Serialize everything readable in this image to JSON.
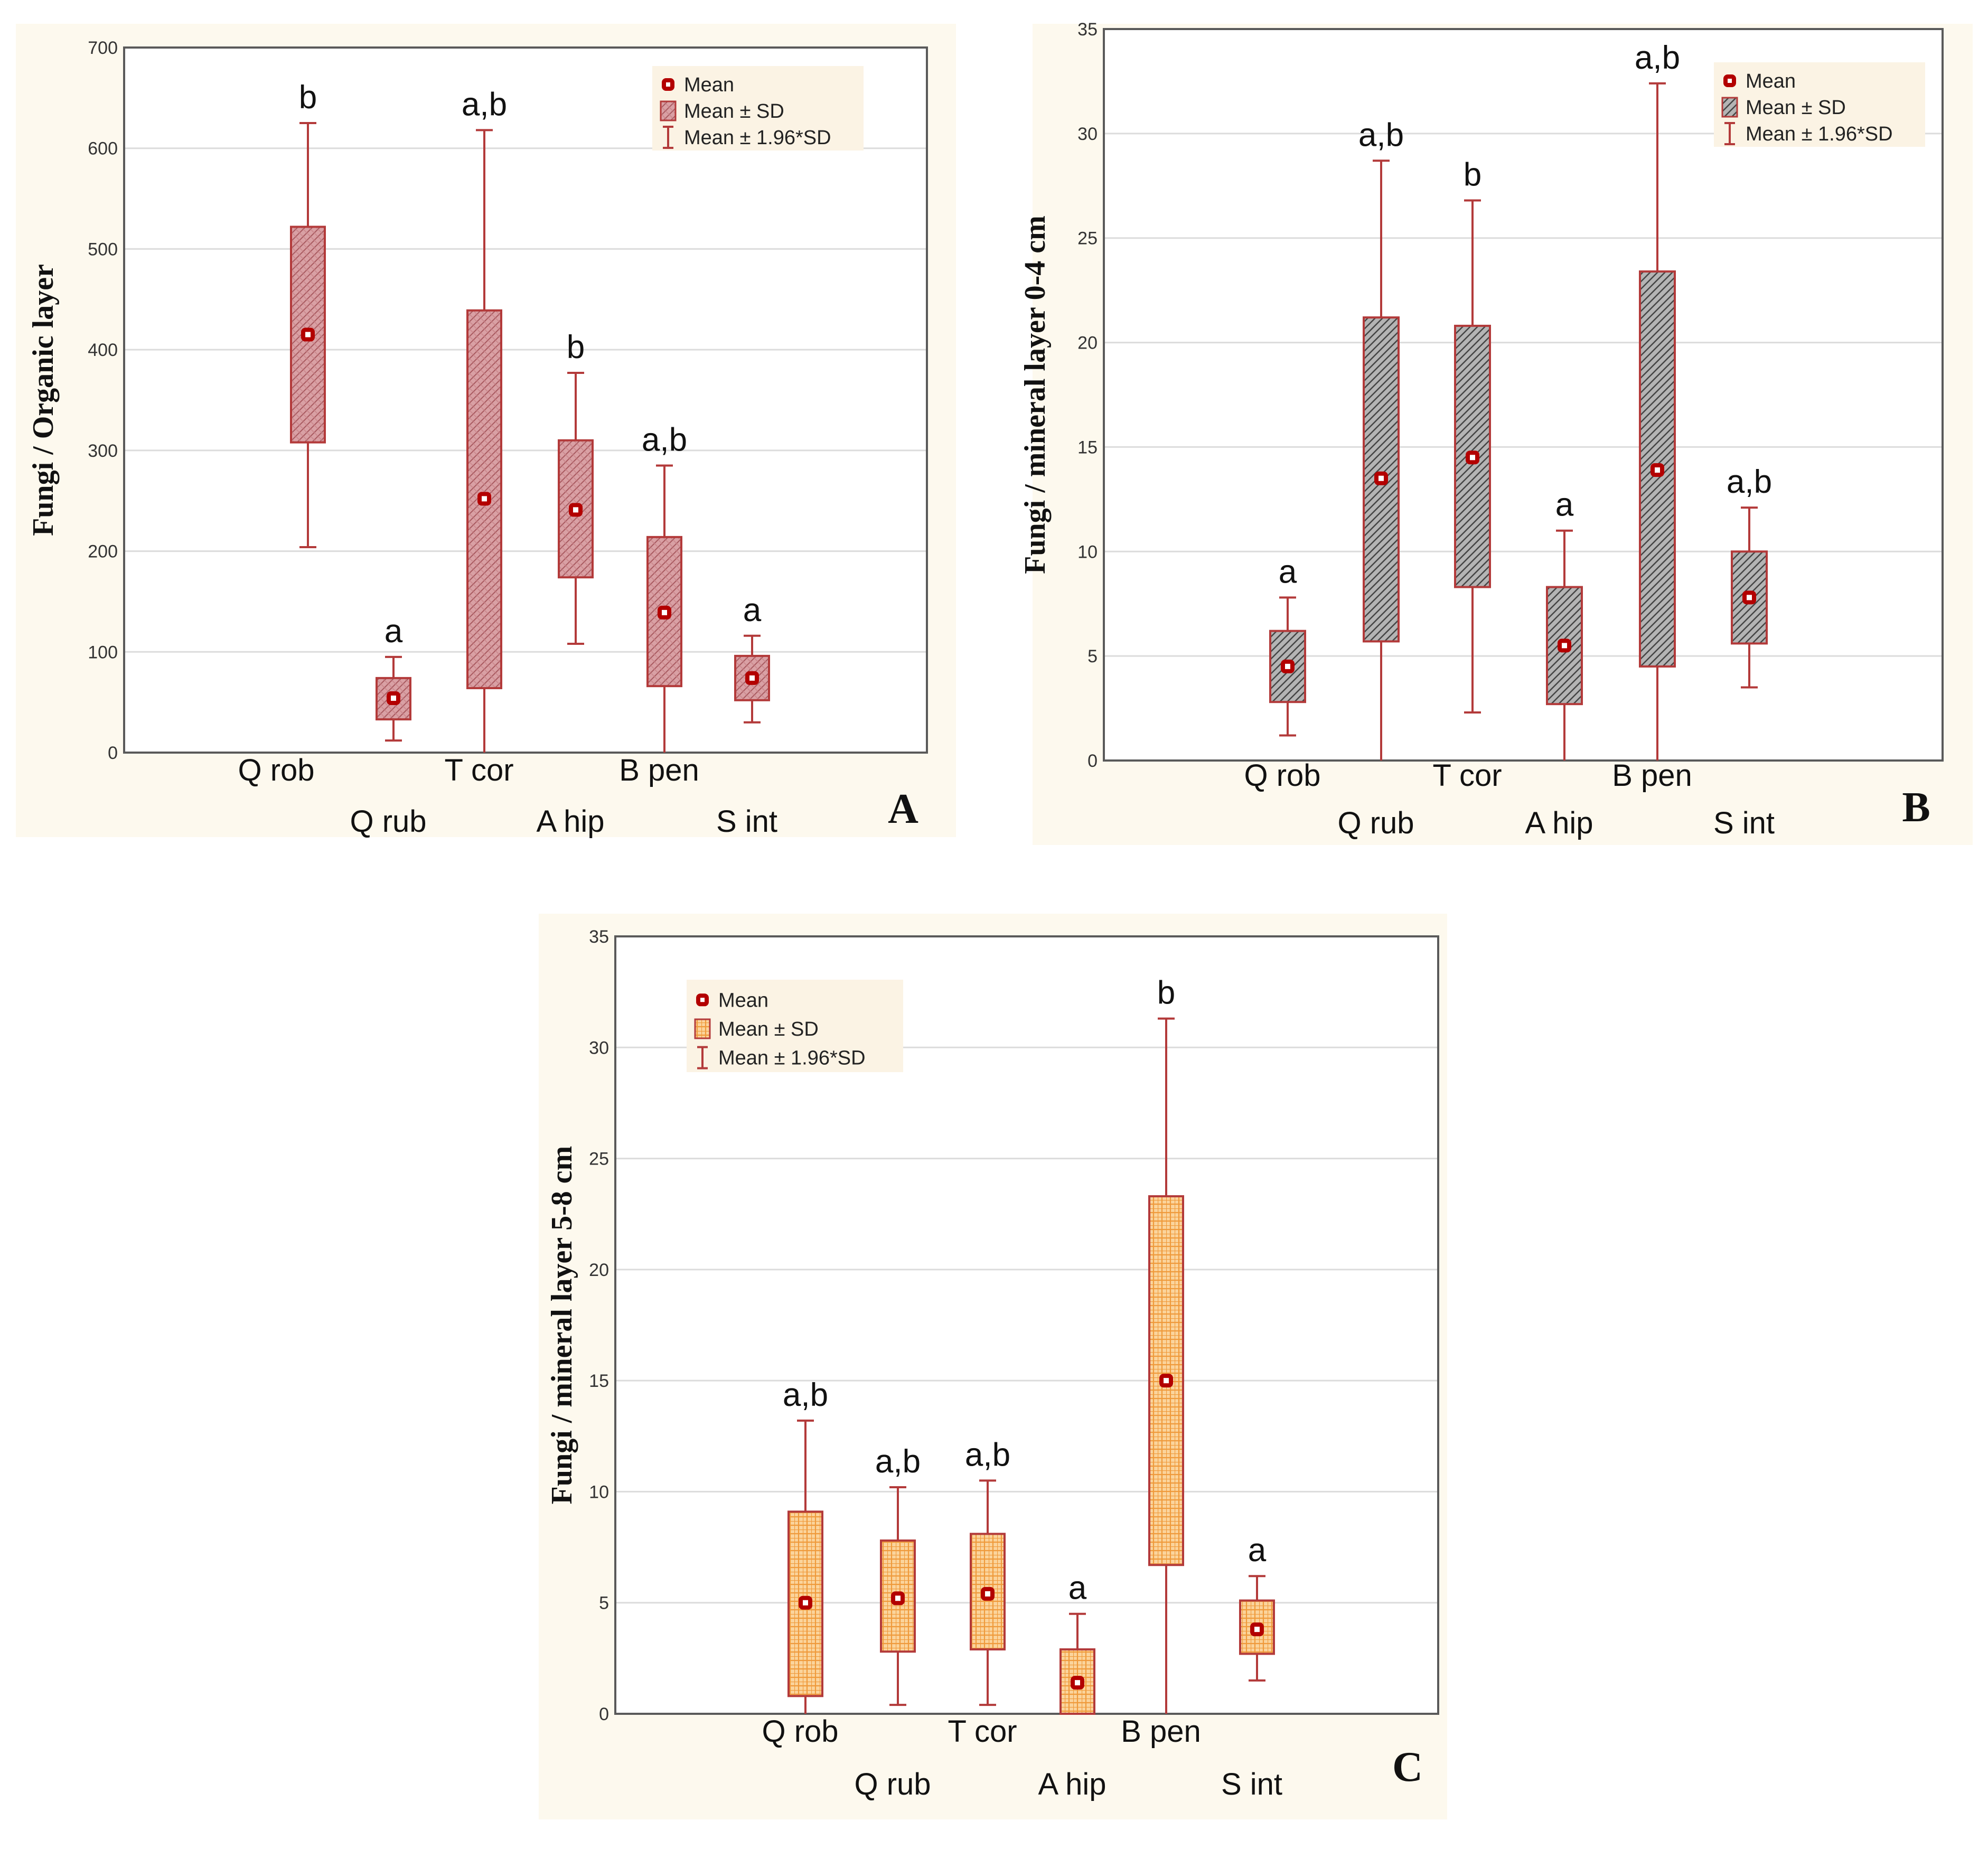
{
  "chart_data": [
    {
      "type": "box",
      "panel_letter": "A",
      "ylabel": "Fungi / Organic layer",
      "ylim": [
        0,
        700
      ],
      "yticks": [
        0,
        100,
        200,
        300,
        400,
        500,
        600,
        700
      ],
      "style": {
        "fill": "#d9a0a4",
        "stroke": "#b33a3a"
      },
      "legend": {
        "mean": "Mean",
        "sd": "Mean ± SD",
        "ci": "Mean ± 1.96*SD",
        "position": "top-right"
      },
      "series": [
        {
          "category": "Q  rob",
          "mean": 415,
          "sd_low": 308,
          "sd_high": 522,
          "ci_low": 204,
          "ci_high": 625,
          "letter": "b"
        },
        {
          "category": "Q  rub",
          "mean": 54,
          "sd_low": 33,
          "sd_high": 74,
          "ci_low": 12,
          "ci_high": 95,
          "letter": "a"
        },
        {
          "category": "T  cor",
          "mean": 252,
          "sd_low": 64,
          "sd_high": 439,
          "ci_low": 0,
          "ci_high": 618,
          "letter": "a,b"
        },
        {
          "category": "A  hip",
          "mean": 241,
          "sd_low": 174,
          "sd_high": 310,
          "ci_low": 108,
          "ci_high": 377,
          "letter": "b"
        },
        {
          "category": "B  pen",
          "mean": 139,
          "sd_low": 66,
          "sd_high": 214,
          "ci_low": 0,
          "ci_high": 285,
          "letter": "a,b"
        },
        {
          "category": "S   int",
          "mean": 74,
          "sd_low": 52,
          "sd_high": 96,
          "ci_low": 30,
          "ci_high": 116,
          "letter": "a"
        }
      ]
    },
    {
      "type": "box",
      "panel_letter": "B",
      "ylabel": "Fungi / mineral layer 0-4 cm",
      "ylim": [
        0,
        35
      ],
      "yticks": [
        0,
        5,
        10,
        15,
        20,
        25,
        30,
        35
      ],
      "style": {
        "fill": "#a9a9a9",
        "stroke": "#b33a3a"
      },
      "legend": {
        "mean": "Mean",
        "sd": "Mean ± SD",
        "ci": "Mean ± 1.96*SD",
        "position": "top-right"
      },
      "series": [
        {
          "category": "Q  rob",
          "mean": 4.5,
          "sd_low": 2.8,
          "sd_high": 6.2,
          "ci_low": 1.2,
          "ci_high": 7.8,
          "letter": "a"
        },
        {
          "category": "Q  rub",
          "mean": 13.5,
          "sd_low": 5.7,
          "sd_high": 21.2,
          "ci_low": 0,
          "ci_high": 28.7,
          "letter": "a,b"
        },
        {
          "category": "T  cor",
          "mean": 14.5,
          "sd_low": 8.3,
          "sd_high": 20.8,
          "ci_low": 2.3,
          "ci_high": 26.8,
          "letter": "b"
        },
        {
          "category": "A  hip",
          "mean": 5.5,
          "sd_low": 2.7,
          "sd_high": 8.3,
          "ci_low": 0,
          "ci_high": 11.0,
          "letter": "a"
        },
        {
          "category": "B  pen",
          "mean": 13.9,
          "sd_low": 4.5,
          "sd_high": 23.4,
          "ci_low": 0,
          "ci_high": 32.4,
          "letter": "a,b"
        },
        {
          "category": "S   int",
          "mean": 7.8,
          "sd_low": 5.6,
          "sd_high": 10.0,
          "ci_low": 3.5,
          "ci_high": 12.1,
          "letter": "a,b"
        }
      ]
    },
    {
      "type": "box",
      "panel_letter": "C",
      "ylabel": "Fungi / mineral layer 5-8 cm",
      "ylim": [
        0,
        35
      ],
      "yticks": [
        0,
        5,
        10,
        15,
        20,
        25,
        30,
        35
      ],
      "style": {
        "fill": "#f7c07a",
        "stroke": "#b33a3a"
      },
      "legend": {
        "mean": "Mean",
        "sd": "Mean ± SD",
        "ci": "Mean ± 1.96*SD",
        "position": "top-left"
      },
      "series": [
        {
          "category": "Q  rob",
          "mean": 5.0,
          "sd_low": 0.8,
          "sd_high": 9.1,
          "ci_low": 0,
          "ci_high": 13.2,
          "letter": "a,b"
        },
        {
          "category": "Q  rub",
          "mean": 5.2,
          "sd_low": 2.8,
          "sd_high": 7.8,
          "ci_low": 0.4,
          "ci_high": 10.2,
          "letter": "a,b"
        },
        {
          "category": "T  cor",
          "mean": 5.4,
          "sd_low": 2.9,
          "sd_high": 8.1,
          "ci_low": 0.4,
          "ci_high": 10.5,
          "letter": "a,b"
        },
        {
          "category": "A  hip",
          "mean": 1.4,
          "sd_low": 0,
          "sd_high": 2.9,
          "ci_low": 0,
          "ci_high": 4.5,
          "letter": "a"
        },
        {
          "category": "B  pen",
          "mean": 15.0,
          "sd_low": 6.7,
          "sd_high": 23.3,
          "ci_low": 0,
          "ci_high": 31.3,
          "letter": "b"
        },
        {
          "category": "S   int",
          "mean": 3.8,
          "sd_low": 2.7,
          "sd_high": 5.1,
          "ci_low": 1.5,
          "ci_high": 6.2,
          "letter": "a"
        }
      ]
    }
  ]
}
